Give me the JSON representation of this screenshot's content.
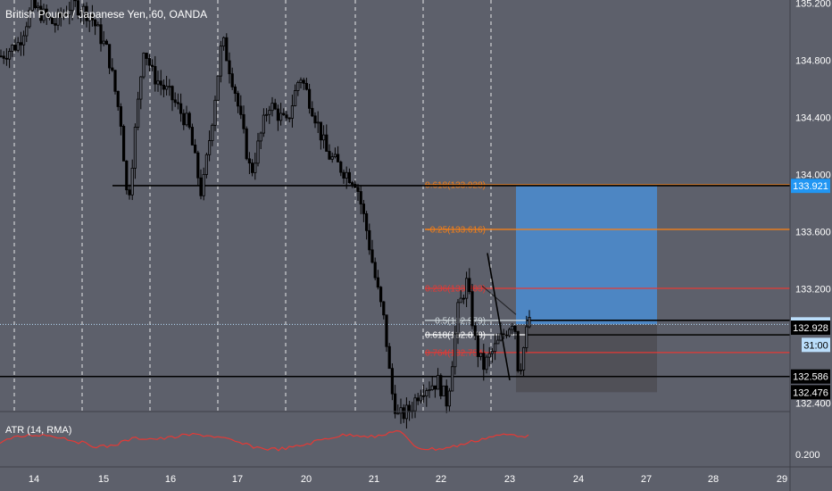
{
  "chart_data": {
    "type": "candlestick",
    "title": "British Pound / Japanese Yen, 60, OANDA",
    "symbol": "British Pound / Japanese Yen",
    "interval": "60",
    "source": "OANDA",
    "ylim": [
      132.35,
      135.25
    ],
    "price_ticks": [
      "135.200",
      "134.800",
      "134.400",
      "134.000",
      "133.600",
      "133.200",
      "132.400"
    ],
    "date_ticks": [
      "14",
      "15",
      "16",
      "17",
      "20",
      "21",
      "22",
      "23",
      "24",
      "27",
      "28",
      "29"
    ],
    "horizontal_levels": [
      133.922,
      132.586
    ],
    "fib_levels": [
      {
        "label": "-0.618(133.928)",
        "value": 133.928,
        "color": "#f57f17"
      },
      {
        "label": "-0.25(133.616)",
        "value": 133.616,
        "color": "#f57f17"
      },
      {
        "label": "0.236(133.203)",
        "value": 133.203,
        "color": "#e53935"
      },
      {
        "label": "0.5(132.979)",
        "value": 132.979,
        "color": "#cfd8dc"
      },
      {
        "label": "0.618(132.878)",
        "value": 132.878,
        "color": "#ffffff"
      },
      {
        "label": "0.764(132.754)",
        "value": 132.754,
        "color": "#e53935"
      }
    ],
    "position": {
      "entry": 132.951,
      "target": 133.922,
      "stop": 132.476
    },
    "last_price": {
      "value": "132.951",
      "countdown": "31:00"
    },
    "price_labels": [
      {
        "text": "133.922",
        "value": 133.922,
        "bg": "#000000",
        "fg": "#ffffff"
      },
      {
        "text": "133.921",
        "value": 133.921,
        "bg": "#2196f3",
        "fg": "#ffffff"
      },
      {
        "text": "132.951",
        "value": 132.951,
        "bg": "#bbdefb",
        "fg": "#000000"
      },
      {
        "text": "132.928",
        "value": 132.928,
        "bg": "#000000",
        "fg": "#ffffff"
      },
      {
        "text": "132.586",
        "value": 132.586,
        "bg": "#000000",
        "fg": "#ffffff"
      },
      {
        "text": "132.476",
        "value": 132.476,
        "bg": "#000000",
        "fg": "#ffffff"
      }
    ],
    "indicator": {
      "label": "ATR (14, RMA)",
      "axis_tick": "0.200",
      "color": "#e53935"
    }
  },
  "colors": {
    "background": "#5d606b",
    "candle": "#000000",
    "profit_zone": "#4a90d9",
    "loss_zone": "#4f4f55",
    "axis_text": "#ffffff"
  }
}
